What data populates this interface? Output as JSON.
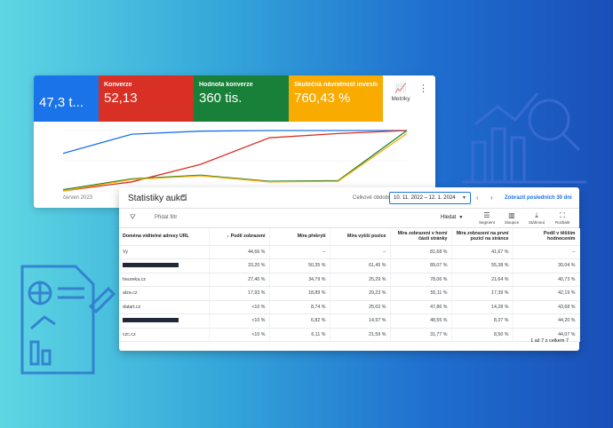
{
  "metrics": {
    "tiles": [
      {
        "label": "",
        "value": "47,3 t...",
        "color": "#1a73e8"
      },
      {
        "label": "Konverze",
        "value": "52,13",
        "color": "#d93025"
      },
      {
        "label": "Hodnota konverze",
        "value": "360 tis.",
        "color": "#188038"
      },
      {
        "label": "Skutečná návratnost investic...",
        "value": "760,43 %",
        "color": "#f9ab00"
      }
    ],
    "metrics_button": "Metriky",
    "x_axis_label": "červen 2023"
  },
  "chart_data": {
    "type": "line",
    "x": [
      0,
      1,
      2,
      3,
      4,
      5
    ],
    "series": [
      {
        "color": "#1a73e8",
        "values": [
          0.62,
          0.94,
          0.99,
          1.0,
          1.0,
          1.0
        ]
      },
      {
        "color": "#d93025",
        "values": [
          0.0,
          0.15,
          0.44,
          0.88,
          0.95,
          1.0
        ]
      },
      {
        "color": "#188038",
        "values": [
          0.02,
          0.2,
          0.26,
          0.16,
          0.17,
          1.0
        ]
      },
      {
        "color": "#f9ab00",
        "values": [
          0.0,
          0.19,
          0.25,
          0.15,
          0.16,
          0.95
        ]
      }
    ]
  },
  "auction": {
    "title": "Statistiky aukcí",
    "period_label": "Celkové období",
    "date_range": "10. 11. 2022 – 12. 1. 2024",
    "last30": "Zobrazit posledních 30 dní",
    "add_filter": "Přidat filtr",
    "search": "Hledat",
    "toolbar": {
      "segment": "Segment",
      "columns": "Sloupce",
      "download": "Stáhnout",
      "expand": "Rozbalit"
    },
    "columns": [
      "Doména viditelné adresy URL",
      "↓ Podíl zobrazení",
      "Míra překrytí",
      "Míra vyšší pozice",
      "Míra zobrazení v horní části stránky",
      "Míra zobrazení na první pozici na stránce",
      "Podíl v těšším hodnocením"
    ],
    "rows": [
      [
        "Vy",
        "44,66 %",
        "--",
        "--",
        "81,68 %",
        "41,67 %",
        "--"
      ],
      [
        "",
        "33,20 %",
        "50,35 %",
        "61,45 %",
        "89,07 %",
        "55,38 %",
        "30,04 %"
      ],
      [
        "heureka.cz",
        "27,40 %",
        "34,79 %",
        "25,29 %",
        "78,06 %",
        "21,64 %",
        "40,73 %"
      ],
      [
        "alza.cz",
        "17,93 %",
        "18,89 %",
        "29,23 %",
        "55,11 %",
        "17,39 %",
        "42,19 %"
      ],
      [
        "datart.cz",
        "<10 %",
        "8,74 %",
        "25,02 %",
        "47,86 %",
        "14,28 %",
        "43,68 %"
      ],
      [
        "",
        "<10 %",
        "6,82 %",
        "14,97 %",
        "48,55 %",
        "8,37 %",
        "44,20 %"
      ],
      [
        "czc.cz",
        "<10 %",
        "6,11 %",
        "21,59 %",
        "31,77 %",
        "8,50 %",
        "44,07 %"
      ]
    ],
    "footer": "1 až 7 z celkem 7"
  }
}
